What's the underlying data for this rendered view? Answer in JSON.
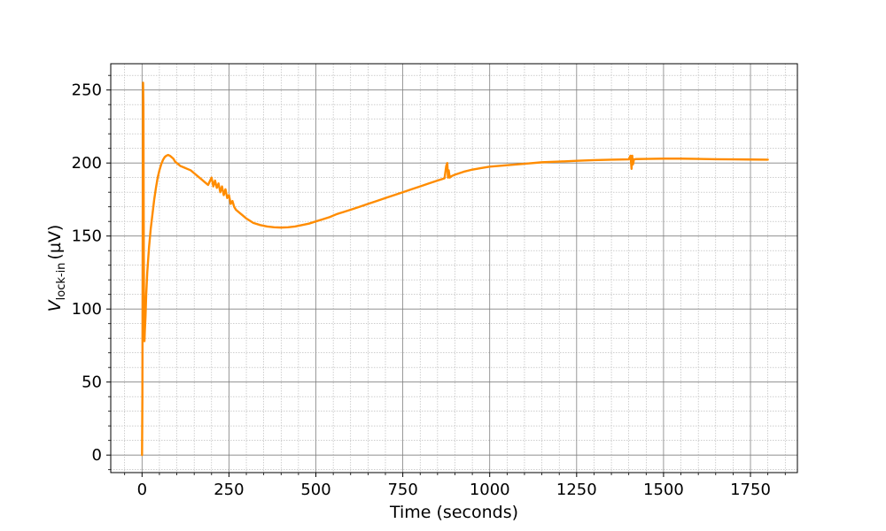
{
  "chart_data": {
    "type": "line",
    "title": "",
    "xlabel": "Time (seconds)",
    "ylabel_main": "V",
    "ylabel_sub": "lock-in",
    "ylabel_unit": "(µV)",
    "xlim": [
      -90,
      1885
    ],
    "ylim": [
      -12,
      268
    ],
    "x_ticks": [
      0,
      250,
      500,
      750,
      1000,
      1250,
      1500,
      1750
    ],
    "x_tick_labels": [
      "0",
      "250",
      "500",
      "750",
      "1000",
      "1250",
      "1500",
      "1750"
    ],
    "y_ticks": [
      0,
      50,
      100,
      150,
      200,
      250
    ],
    "y_tick_labels": [
      "0",
      "50",
      "100",
      "150",
      "200",
      "250"
    ],
    "grid": true,
    "minor_grid": true,
    "line_color": "#ff8c00",
    "series": [
      {
        "x": [
          0,
          1,
          2,
          3,
          4,
          5,
          6,
          7,
          8,
          10,
          12,
          15,
          20,
          25,
          30,
          35,
          40,
          45,
          50,
          55,
          60,
          65,
          70,
          75,
          80,
          85,
          90,
          95,
          100,
          105,
          110,
          115,
          120,
          130,
          140,
          150,
          160,
          170,
          180,
          190,
          200,
          205,
          210,
          215,
          220,
          225,
          230,
          235,
          240,
          245,
          250,
          255,
          260,
          265,
          270,
          280,
          290,
          300,
          320,
          340,
          360,
          380,
          400,
          420,
          440,
          460,
          480,
          500,
          520,
          540,
          560,
          580,
          600,
          625,
          650,
          675,
          700,
          725,
          750,
          775,
          800,
          825,
          850,
          870,
          875,
          878,
          880,
          882,
          885,
          890,
          900,
          925,
          950,
          975,
          1000,
          1050,
          1100,
          1150,
          1200,
          1250,
          1300,
          1350,
          1400,
          1405,
          1408,
          1410,
          1412,
          1415,
          1420,
          1450,
          1500,
          1550,
          1600,
          1650,
          1700,
          1750,
          1800
        ],
        "y": [
          0,
          40,
          150,
          255,
          240,
          140,
          90,
          78,
          85,
          95,
          110,
          125,
          142,
          155,
          165,
          175,
          183,
          190,
          195,
          199,
          202,
          204,
          205,
          205.5,
          205,
          204,
          203,
          201,
          200,
          199,
          198,
          197.5,
          197,
          196,
          195,
          193,
          191,
          189,
          187,
          185,
          190,
          184,
          188,
          183,
          186,
          180,
          184,
          178,
          182,
          176,
          178,
          172,
          174,
          170,
          168,
          166,
          164,
          162,
          159,
          157.5,
          156.5,
          156,
          155.8,
          156,
          156.5,
          157.5,
          158.5,
          160,
          161.5,
          163,
          165,
          166.5,
          168,
          170,
          172,
          174,
          176,
          178,
          180,
          182,
          184,
          186,
          188,
          189.5,
          198,
          200,
          190,
          195,
          190,
          191,
          192,
          194,
          195.5,
          196.5,
          197.5,
          198.5,
          199.5,
          200.5,
          201,
          201.5,
          202,
          202.3,
          202.5,
          205,
          196,
          205,
          199,
          202.5,
          202.7,
          202.8,
          203,
          203,
          202.8,
          202.6,
          202.5,
          202.4,
          202.3
        ]
      }
    ]
  }
}
